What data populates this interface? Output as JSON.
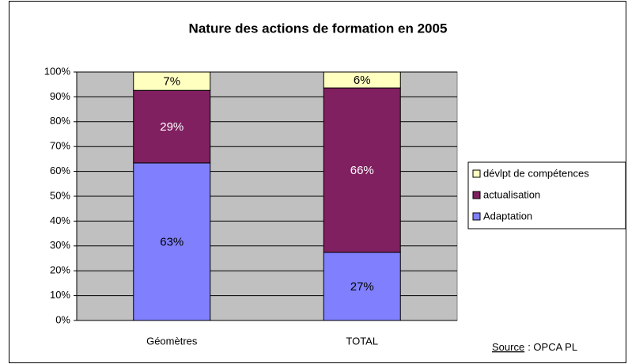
{
  "chart_data": {
    "type": "bar",
    "stacked": true,
    "title": "Nature des actions de formation en 2005",
    "categories": [
      "Géomètres",
      "TOTAL"
    ],
    "series": [
      {
        "name": "Adaptation",
        "color": "#8080ff",
        "values": [
          63.4,
          27.4
        ],
        "value_labels": [
          "63%",
          "27%"
        ]
      },
      {
        "name": "actualisation",
        "color": "#802060",
        "values": [
          29.2,
          66.2
        ],
        "value_labels": [
          "29%",
          "66%"
        ]
      },
      {
        "name": "dévlpt de compétences",
        "color": "#ffffc0",
        "values": [
          7.4,
          6.4
        ],
        "value_labels": [
          "7%",
          "6%"
        ]
      }
    ],
    "ylim": [
      0,
      100
    ],
    "yticks": [
      {
        "value": 0,
        "label": "0%"
      },
      {
        "value": 10,
        "label": "10%"
      },
      {
        "value": 20,
        "label": "20%"
      },
      {
        "value": 30,
        "label": "30%"
      },
      {
        "value": 40,
        "label": "40%"
      },
      {
        "value": 50,
        "label": "50%"
      },
      {
        "value": 60,
        "label": "60%"
      },
      {
        "value": 70,
        "label": "70%"
      },
      {
        "value": 80,
        "label": "80%"
      },
      {
        "value": 90,
        "label": "90%"
      },
      {
        "value": 100,
        "label": "100%"
      }
    ],
    "grid": true,
    "plot_background": "#c0c0c0",
    "legend": "right",
    "source": [
      "Source",
      ": OPCA PL"
    ]
  }
}
